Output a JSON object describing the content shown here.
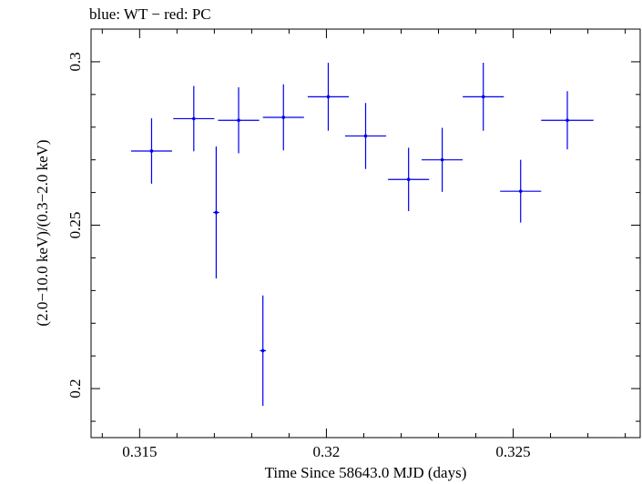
{
  "chart_data": {
    "type": "scatter",
    "title": "blue: WT − red: PC",
    "xlabel": "Time Since 58643.0 MJD (days)",
    "ylabel": "(2.0−10.0 keV)/(0.3−2.0 keV)",
    "xlim": [
      0.3137,
      0.3284
    ],
    "ylim": [
      0.185,
      0.31
    ],
    "xticks": [
      0.315,
      0.32,
      0.325
    ],
    "xtick_labels": [
      "0.315",
      "0.32",
      "0.325"
    ],
    "yticks": [
      0.2,
      0.25,
      0.3
    ],
    "ytick_labels": [
      "0.2",
      "0.25",
      "0.3"
    ],
    "grid": false,
    "series": [
      {
        "name": "WT",
        "color": "#0000ee",
        "points": [
          {
            "x": 0.31532,
            "y": 0.2727,
            "xerr": 0.00055,
            "yerr": 0.01
          },
          {
            "x": 0.31645,
            "y": 0.2826,
            "xerr": 0.00055,
            "yerr": 0.01
          },
          {
            "x": 0.31705,
            "y": 0.2539,
            "xerr": 8e-05,
            "yerr": 0.0202
          },
          {
            "x": 0.31765,
            "y": 0.2821,
            "xerr": 0.00055,
            "yerr": 0.0101
          },
          {
            "x": 0.3183,
            "y": 0.2116,
            "xerr": 8e-05,
            "yerr": 0.0169
          },
          {
            "x": 0.31885,
            "y": 0.283,
            "xerr": 0.00055,
            "yerr": 0.0101
          },
          {
            "x": 0.32005,
            "y": 0.2893,
            "xerr": 0.00055,
            "yerr": 0.0104
          },
          {
            "x": 0.32105,
            "y": 0.2773,
            "xerr": 0.00055,
            "yerr": 0.0101
          },
          {
            "x": 0.3222,
            "y": 0.264,
            "xerr": 0.00055,
            "yerr": 0.0097
          },
          {
            "x": 0.3231,
            "y": 0.27,
            "xerr": 0.00055,
            "yerr": 0.0098
          },
          {
            "x": 0.3242,
            "y": 0.2893,
            "xerr": 0.00055,
            "yerr": 0.0104
          },
          {
            "x": 0.3252,
            "y": 0.2604,
            "xerr": 0.00055,
            "yerr": 0.0096
          },
          {
            "x": 0.32645,
            "y": 0.2821,
            "xerr": 0.0007,
            "yerr": 0.0089
          }
        ]
      }
    ]
  }
}
